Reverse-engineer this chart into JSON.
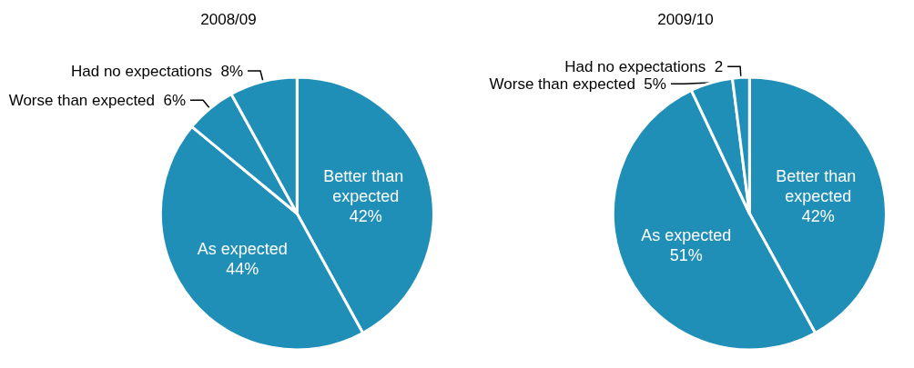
{
  "chart_data": [
    {
      "type": "pie",
      "title": "2008/09",
      "categories": [
        "Better than expected",
        "As expected",
        "Worse than expected",
        "Had no expectations"
      ],
      "values": [
        42,
        44,
        6,
        8
      ],
      "colors": [
        "#1f8fb8",
        "#1f8fb8",
        "#1f8fb8",
        "#1f8fb8"
      ],
      "value_labels": [
        "42%",
        "44%",
        "6%",
        "8%"
      ],
      "legend": false
    },
    {
      "type": "pie",
      "title": "2009/10",
      "categories": [
        "Better than expected",
        "As expected",
        "Worse than expected",
        "Had no expectations"
      ],
      "values": [
        42,
        51,
        5,
        2
      ],
      "colors": [
        "#1f8fb8",
        "#1f8fb8",
        "#1f8fb8",
        "#1f8fb8"
      ],
      "value_labels": [
        "42%",
        "51%",
        "5%",
        "2"
      ],
      "legend": false
    }
  ]
}
